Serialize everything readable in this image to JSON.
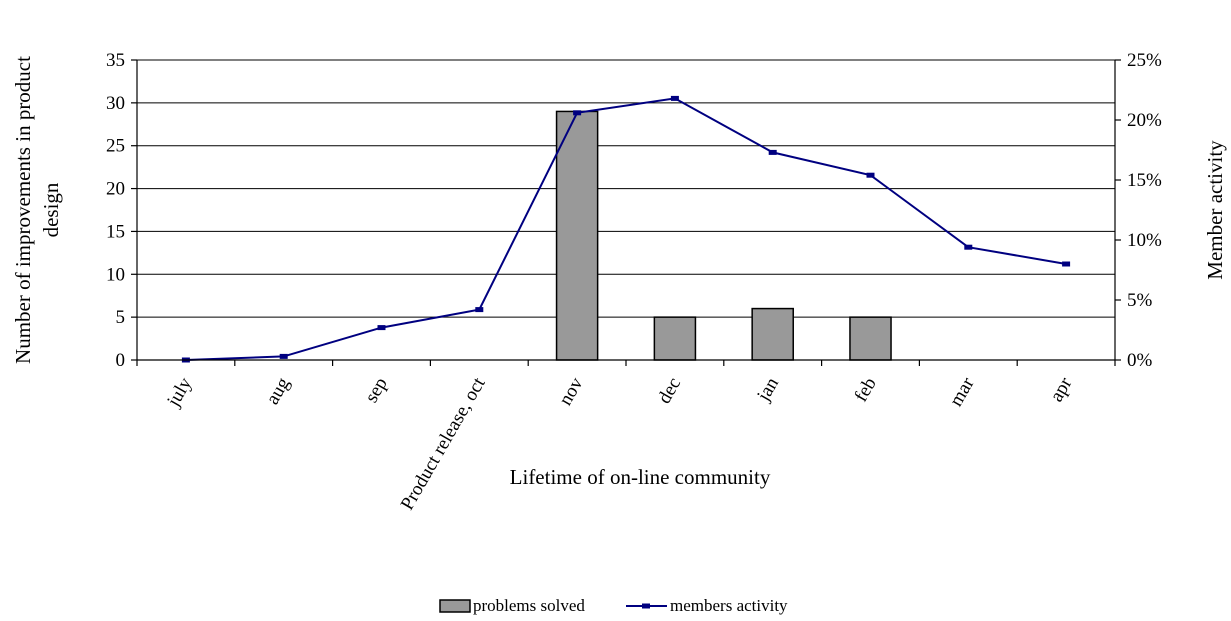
{
  "chart_data": {
    "type": "bar",
    "categories": [
      "july",
      "aug",
      "sep",
      "Product release, oct",
      "nov",
      "dec",
      "jan",
      "feb",
      "mar",
      "apr"
    ],
    "series": [
      {
        "name": "problems solved",
        "type": "bar",
        "axis": "left",
        "color": "#999999",
        "values": [
          0,
          0,
          0,
          0,
          29,
          5,
          6,
          5,
          0,
          0
        ]
      },
      {
        "name": "members activity",
        "type": "line",
        "axis": "right",
        "color": "#000080",
        "values": [
          0.0,
          0.3,
          2.7,
          4.2,
          20.6,
          21.8,
          17.3,
          15.4,
          9.4,
          8.0
        ],
        "unit": "%"
      }
    ],
    "xlabel": "Lifetime of on-line community",
    "ylabel": "Number of improvements in product design",
    "ylabel_lines": [
      "Number of improvements in product",
      "design"
    ],
    "y2label": "Member activity",
    "ylim": [
      0,
      35
    ],
    "y2lim": [
      0,
      25
    ],
    "yticks": [
      "0",
      "5",
      "10",
      "15",
      "20",
      "25",
      "30",
      "35"
    ],
    "y2ticks": [
      "0%",
      "5%",
      "10%",
      "15%",
      "20%",
      "25%"
    ],
    "grid": true,
    "legend_position": "bottom-center"
  }
}
